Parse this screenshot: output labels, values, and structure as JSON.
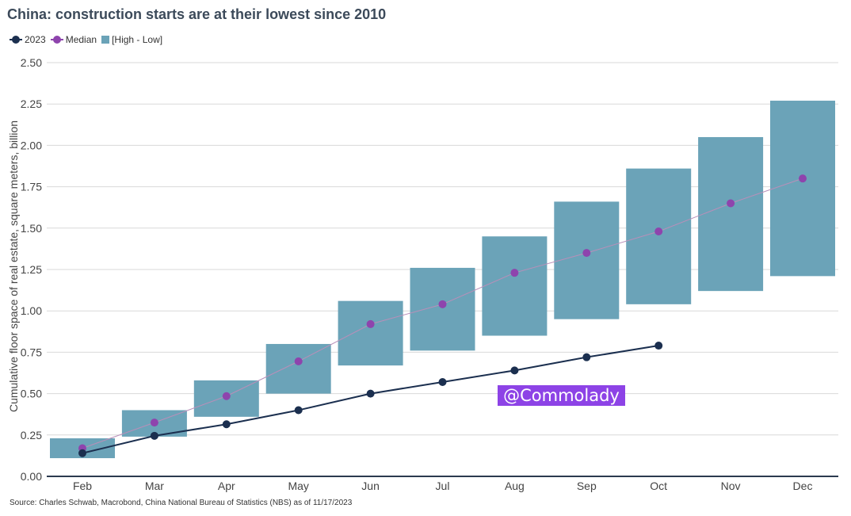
{
  "title": "China: construction starts are at their lowest since 2010",
  "source": "Source: Charles Schwab, Macrobond, China National Bureau of Statistics (NBS) as of 11/17/2023",
  "watermark": "@Commolady",
  "colors": {
    "series_2023": "#1b2f4f",
    "median": "#8e44ad",
    "median_line": "#b98fb9",
    "range": "#6ba3b8",
    "grid": "#d9d9d9",
    "axis": "#2b3a4f"
  },
  "chart_data": {
    "type": "line",
    "ylabel": "Cumulative floor space of real estate, square meters, billion",
    "ylim": [
      0,
      2.5
    ],
    "yticks": [
      "0.00",
      "0.25",
      "0.50",
      "0.75",
      "1.00",
      "1.25",
      "1.50",
      "1.75",
      "2.00",
      "2.25",
      "2.50"
    ],
    "categories": [
      "Feb",
      "Mar",
      "Apr",
      "May",
      "Jun",
      "Jul",
      "Aug",
      "Sep",
      "Oct",
      "Nov",
      "Dec"
    ],
    "grid": true,
    "legend_position": "top-left",
    "series": [
      {
        "name": "2023",
        "kind": "line",
        "values": [
          0.14,
          0.245,
          0.315,
          0.4,
          0.5,
          0.57,
          0.64,
          0.72,
          0.79,
          null,
          null
        ]
      },
      {
        "name": "Median",
        "kind": "line",
        "values": [
          0.17,
          0.325,
          0.485,
          0.695,
          0.92,
          1.04,
          1.23,
          1.35,
          1.48,
          1.65,
          1.8
        ]
      },
      {
        "name": "[High - Low]",
        "kind": "range",
        "high": [
          0.23,
          0.4,
          0.58,
          0.8,
          1.06,
          1.26,
          1.45,
          1.66,
          1.86,
          2.05,
          2.27
        ],
        "low": [
          0.11,
          0.24,
          0.36,
          0.5,
          0.67,
          0.76,
          0.85,
          0.95,
          1.04,
          1.12,
          1.21
        ]
      }
    ]
  }
}
